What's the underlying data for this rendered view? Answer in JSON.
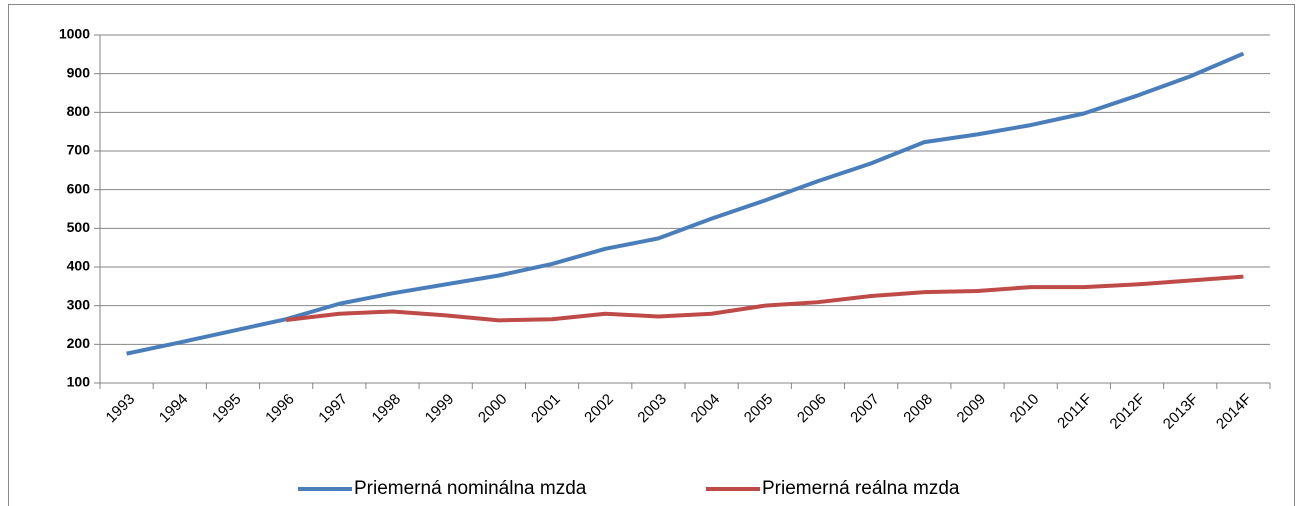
{
  "chart_data": {
    "type": "line",
    "categories": [
      "1993",
      "1994",
      "1995",
      "1996",
      "1997",
      "1998",
      "1999",
      "2000",
      "2001",
      "2002",
      "2003",
      "2004",
      "2005",
      "2006",
      "2007",
      "2008",
      "2009",
      "2010",
      "2011F",
      "2012F",
      "2013F",
      "2014F"
    ],
    "series": [
      {
        "name": "Priemerná nominálna mzda",
        "color": "#4a7ebb",
        "values": [
          176,
          205,
          235,
          265,
          305,
          332,
          355,
          378,
          408,
          447,
          474,
          525,
          572,
          622,
          668,
          723,
          743,
          767,
          797,
          843,
          893,
          952
        ]
      },
      {
        "name": "Priemerná reálna mzda",
        "color": "#be4b48",
        "values": [
          null,
          null,
          null,
          263,
          279,
          285,
          275,
          262,
          265,
          279,
          272,
          279,
          300,
          309,
          325,
          335,
          338,
          348,
          348,
          355,
          365,
          375
        ]
      }
    ],
    "ylim": [
      100,
      1000
    ],
    "yticks": [
      100,
      200,
      300,
      400,
      500,
      600,
      700,
      800,
      900,
      1000
    ],
    "grid": true,
    "legend": "bottom"
  }
}
